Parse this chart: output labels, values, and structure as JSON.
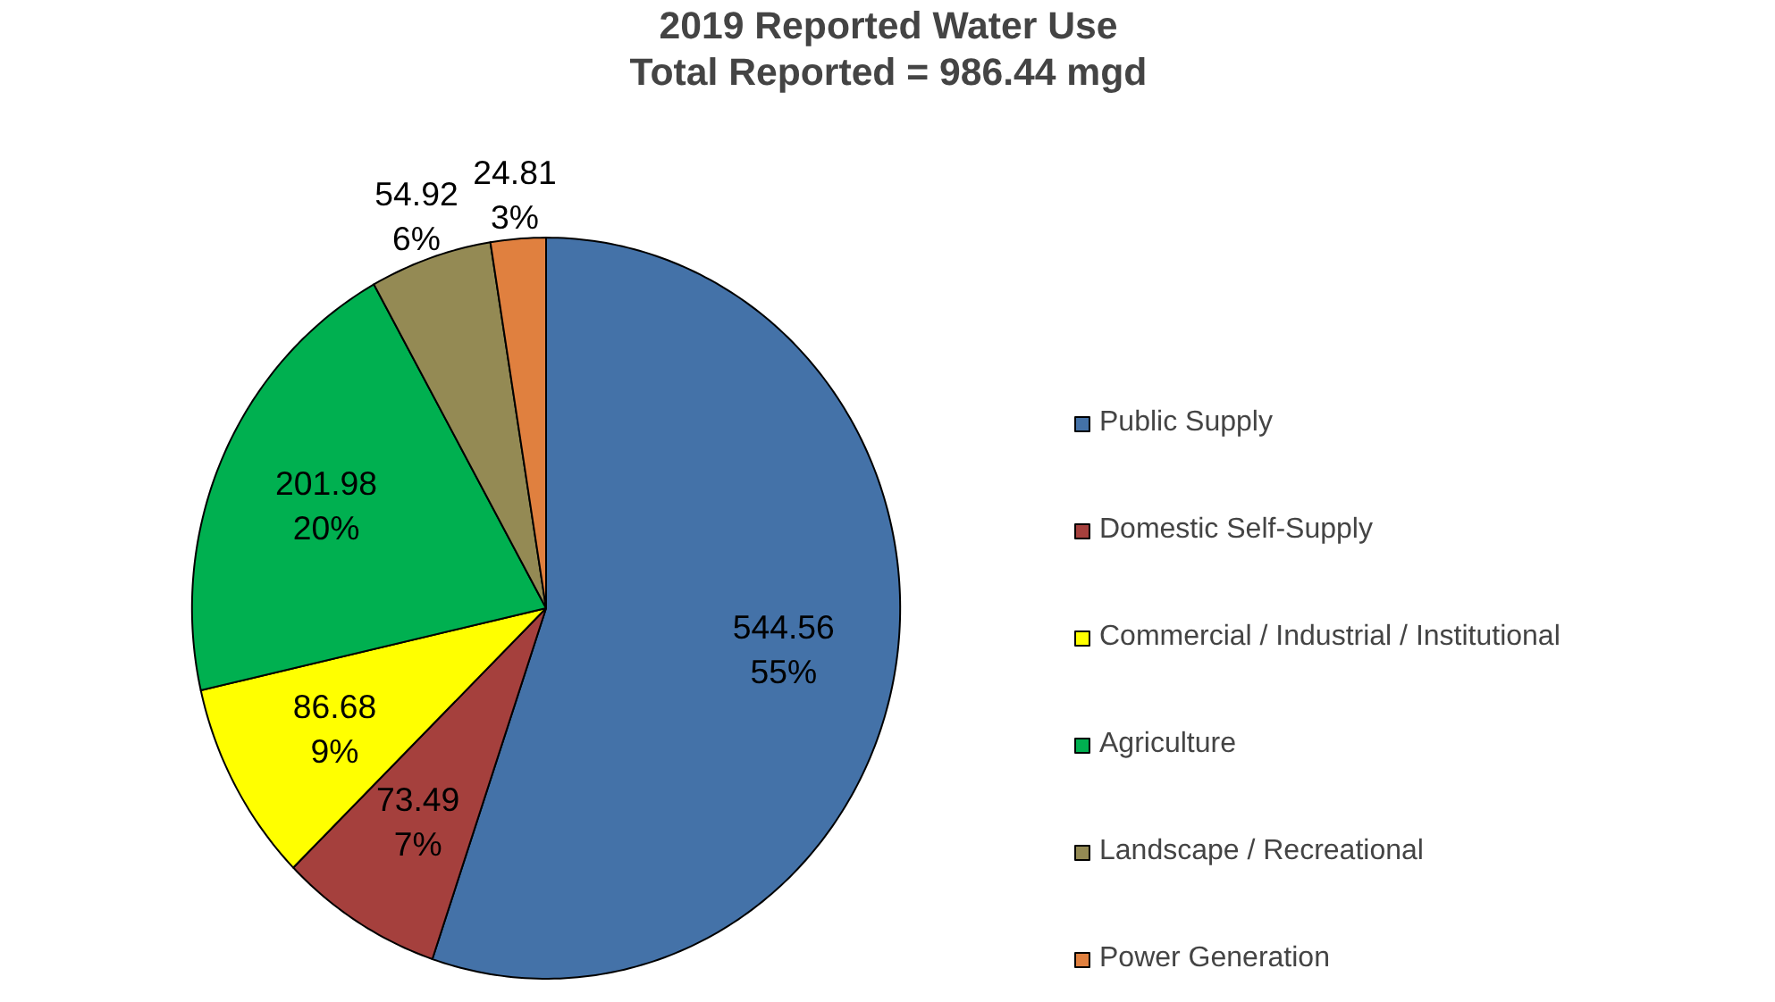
{
  "chart_data": {
    "type": "pie",
    "title": "2019 Reported Water Use",
    "subtitle": "Total Reported = 986.44 mgd",
    "categories": [
      "Public Supply",
      "Domestic Self-Supply",
      "Commercial / Industrial / Institutional",
      "Agriculture",
      "Landscape / Recreational",
      "Power Generation"
    ],
    "values": [
      544.56,
      73.49,
      86.68,
      201.98,
      54.92,
      24.81
    ],
    "colors": [
      "#4472a8",
      "#a5403d",
      "#ffff00",
      "#00b050",
      "#948a54",
      "#e0803f"
    ],
    "value_labels": [
      "544.56\n55%",
      "73.49\n7%",
      "86.68\n9%",
      "201.98\n20%",
      "54.92\n6%",
      "24.81\n3%"
    ],
    "legend": "right"
  }
}
